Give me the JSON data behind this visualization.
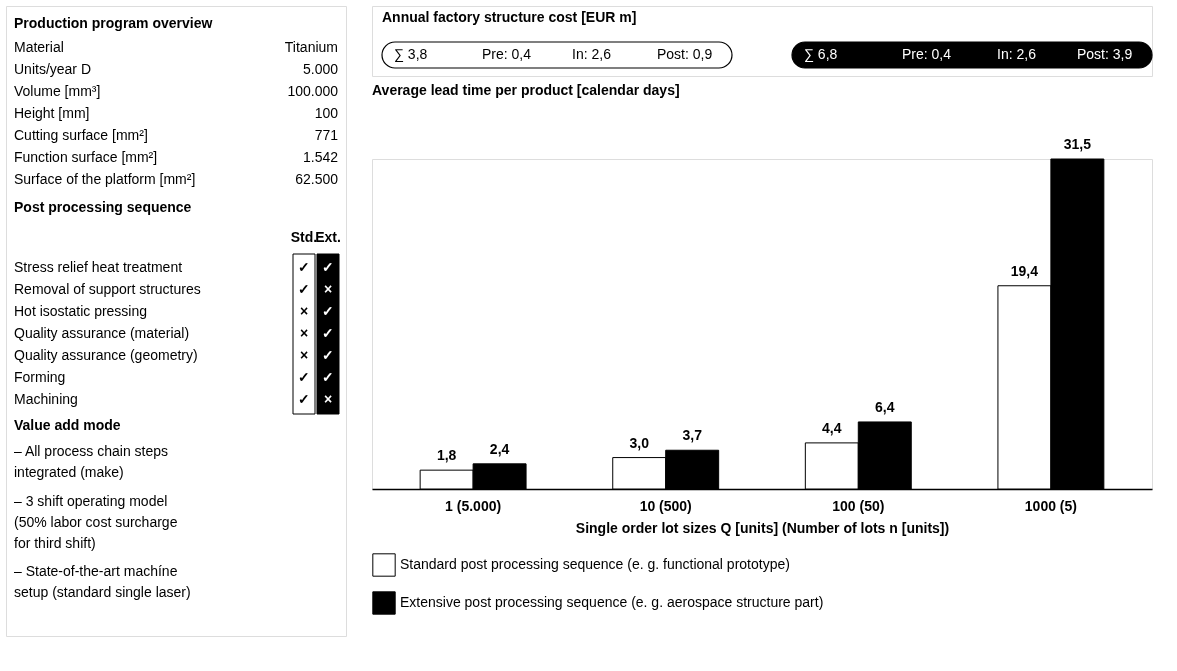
{
  "chart_data": [
    {
      "type": "other",
      "title": "Production program overview",
      "annotations": [
        "Material",
        "Titanium",
        "Units/year D",
        "5.000",
        "Volume [mm³]",
        "100.000",
        "Height [mm]",
        "100",
        "Cutting surface [mm²]",
        "771",
        "Function surface [mm²]",
        "1.542",
        "Surface of the platform [mm²]",
        "62.500",
        "Post processing sequence",
        "Std.",
        "Ext.",
        "Stress relief heat treatment",
        "Removal of support structures",
        "Hot isostatic pressing",
        "Quality assurance (material)",
        "Quality assurance (geometry)",
        "Forming",
        "Machining",
        "✓",
        "✓",
        "×",
        "×",
        "×",
        "✓",
        "✓",
        "✓",
        "×",
        "✓",
        "✓",
        "✓",
        "✓",
        "×",
        "Value add mode",
        "–  All process chain steps\n    integrated (make)",
        "–  3 shift operating model\n    (50% labor cost surcharge\n    for third shift)",
        "–  State-of-the-art machíne\n    setup (standard single laser)"
      ]
    },
    {
      "type": "bar",
      "title": "Average lead time per product [calendar days]",
      "annotations": [
        "Annual factory structure cost [EUR m]",
        "∑ 3,8",
        "Pre: 0,4",
        "In: 2,6",
        "Post: 0,9",
        "∑ 6,8",
        "Pre: 0,4",
        "In: 2,6",
        "Post: 3,9"
      ],
      "categories": [
        "1 (5.000)",
        "10 (500)",
        "100 (50)",
        "1000 (5)"
      ],
      "xlabel": "Single order lot sizes Q [units] (Number of lots n [units])",
      "series": [
        {
          "name": "Standard post processing sequence (e. g. functional prototype)",
          "color": "#ffffff",
          "values": [
            1.8,
            3.0,
            4.4,
            19.4
          ],
          "value_labels": [
            "1,8",
            "3,0",
            "4,4",
            "19,4"
          ]
        },
        {
          "name": "Extensive post processing sequence (e. g. aerospace structure part)",
          "color": "#000000",
          "values": [
            2.4,
            3.7,
            6.4,
            31.5
          ],
          "value_labels": [
            "2,4",
            "3,7",
            "6,4",
            "31,5"
          ]
        }
      ],
      "legend": "bottom",
      "grid": false
    }
  ]
}
